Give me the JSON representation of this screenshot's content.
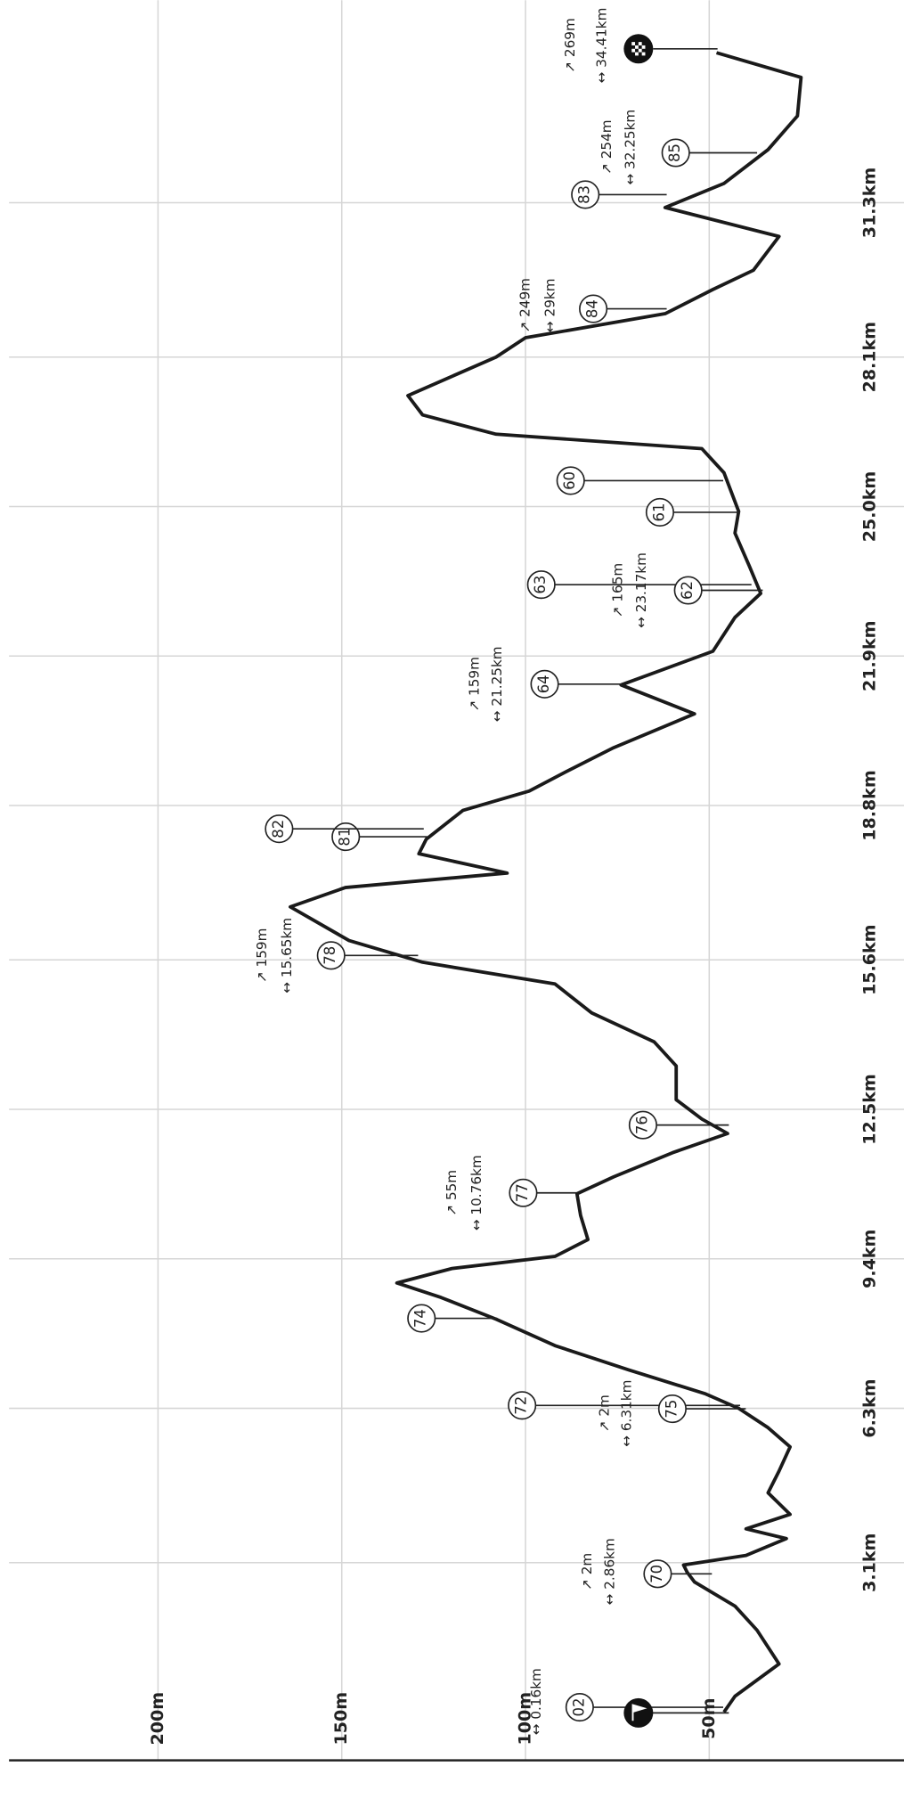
{
  "chart_data": {
    "type": "line",
    "x": [
      0,
      0.33,
      1.0,
      1.7,
      2.2,
      2.7,
      2.9,
      3.05,
      3.25,
      3.6,
      3.8,
      4.1,
      4.55,
      5.0,
      5.5,
      5.9,
      6.3,
      6.6,
      7.1,
      7.6,
      8.15,
      8.6,
      8.9,
      9.2,
      9.45,
      9.8,
      10.3,
      10.75,
      11.1,
      11.6,
      12.0,
      12.3,
      12.7,
      13.4,
      13.9,
      14.5,
      15.1,
      15.55,
      16.0,
      16.7,
      17.1,
      17.4,
      17.8,
      18.1,
      18.7,
      19.1,
      19.5,
      20.0,
      20.7,
      21.3,
      22.0,
      22.7,
      23.2,
      23.75,
      24.45,
      24.9,
      25.7,
      26.2,
      26.5,
      26.9,
      27.3,
      27.7,
      28.1,
      28.5,
      29.0,
      29.5,
      29.9,
      30.6,
      31.2,
      31.7,
      32.4,
      33.1,
      33.9,
      34.41
    ],
    "values": [
      46,
      43,
      31,
      37,
      43,
      54,
      56,
      57,
      40,
      29,
      40,
      28,
      34,
      31,
      28,
      34,
      42,
      51,
      72,
      92,
      108,
      123,
      135,
      120,
      92,
      83,
      85,
      86,
      76,
      60,
      45,
      52,
      59,
      59,
      65,
      82,
      92,
      128,
      148,
      164,
      149,
      105,
      129,
      127,
      117,
      99,
      89,
      76,
      54,
      74,
      49,
      43,
      36,
      39,
      43,
      42,
      46,
      52,
      108,
      128,
      132,
      120,
      108,
      100,
      62,
      49,
      38,
      31,
      62,
      46,
      34,
      26,
      25,
      48
    ],
    "color": "#1a1a1a",
    "xlim": [
      -1,
      35.5
    ],
    "ylim": [
      -3,
      243
    ],
    "xticks": [
      {
        "value": 3.1,
        "label": "3.1km"
      },
      {
        "value": 6.3,
        "label": "6.3km"
      },
      {
        "value": 9.4,
        "label": "9.4km"
      },
      {
        "value": 12.5,
        "label": "12.5km"
      },
      {
        "value": 15.6,
        "label": "15.6km"
      },
      {
        "value": 18.8,
        "label": "18.8km"
      },
      {
        "value": 21.9,
        "label": "21.9km"
      },
      {
        "value": 25.0,
        "label": "25.0km"
      },
      {
        "value": 28.1,
        "label": "28.1km"
      },
      {
        "value": 31.3,
        "label": "31.3km"
      }
    ],
    "yticks": [
      {
        "value": 50,
        "label": "50m"
      },
      {
        "value": 100,
        "label": "100m"
      },
      {
        "value": 150,
        "label": "150m"
      },
      {
        "value": 200,
        "label": "200m"
      }
    ],
    "grid": true,
    "waypoints": [
      "02",
      "70",
      "72",
      "75",
      "74",
      "77",
      "76",
      "78",
      "81",
      "82",
      "64",
      "63",
      "62",
      "61",
      "60",
      "84",
      "83",
      "85"
    ],
    "annotations": [
      {
        "distance": "↔ 0.16km"
      },
      {
        "climb": "↗ 2m",
        "distance": "↔ 2.86km"
      },
      {
        "climb": "↗ 2m",
        "distance": "↔ 6.31km"
      },
      {
        "climb": "↗ 55m",
        "distance": "↔ 10.76km"
      },
      {
        "climb": "↗ 159m",
        "distance": "↔ 15.65km"
      },
      {
        "climb": "↗ 159m",
        "distance": "↔ 21.25km"
      },
      {
        "climb": "↗ 165m",
        "distance": "↔ 23.17km"
      },
      {
        "climb": "↗ 249m",
        "distance": "↔ 29km"
      },
      {
        "climb": "↗ 254m",
        "distance": "↔ 32.25km"
      },
      {
        "climb": "↗ 269m",
        "distance": "↔ 34.41km"
      }
    ]
  }
}
